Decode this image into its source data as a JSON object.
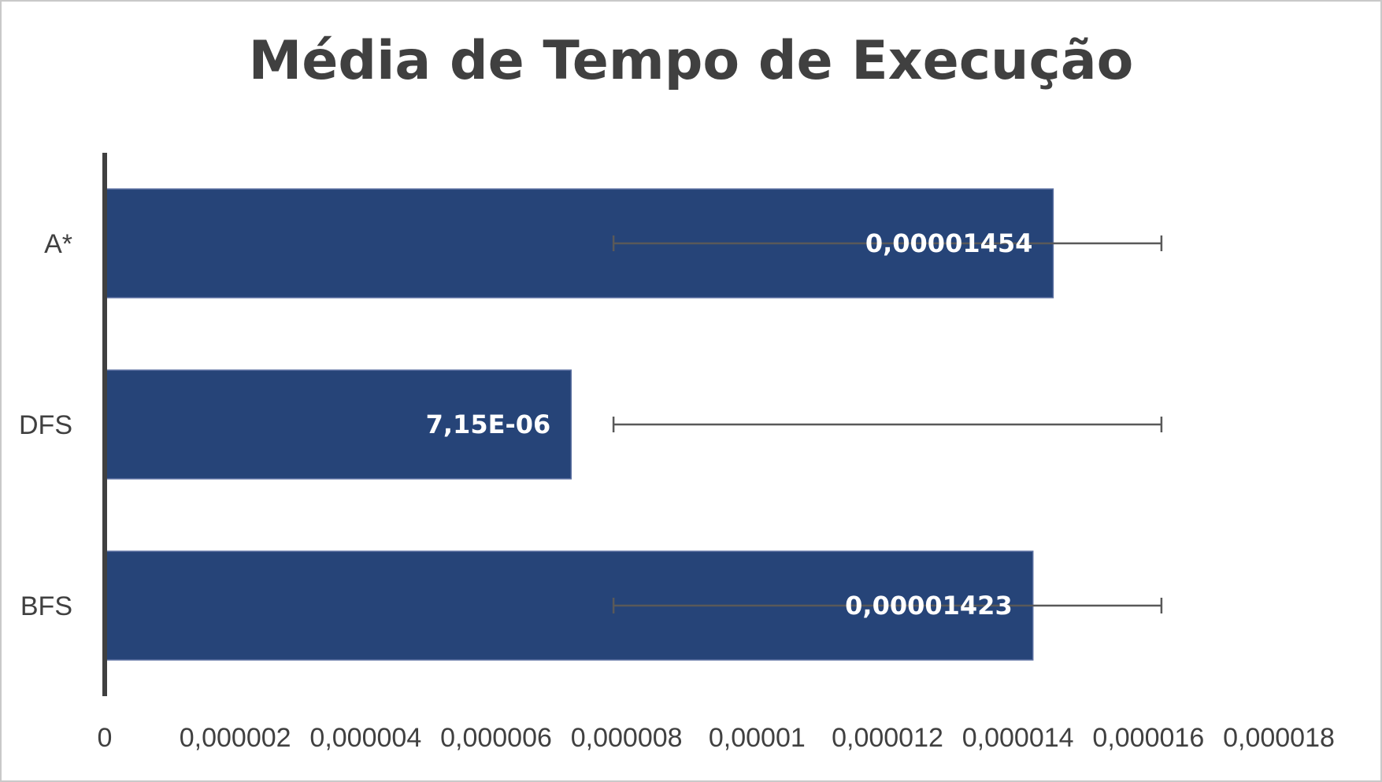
{
  "chart_data": {
    "type": "bar",
    "orientation": "horizontal",
    "title": "Média de Tempo de Execução",
    "categories": [
      "A*",
      "DFS",
      "BFS"
    ],
    "series": [
      {
        "values": [
          1.454e-05,
          7.15e-06,
          1.423e-05
        ],
        "data_labels": [
          "0,00001454",
          "7,15E-06",
          "0,00001423"
        ],
        "error_bar_range": [
          7.8e-06,
          1.62e-05
        ]
      }
    ],
    "xlim": [
      0,
      1.8e-05
    ],
    "x_ticks": [
      0,
      2e-06,
      4e-06,
      6e-06,
      8e-06,
      1e-05,
      1.2e-05,
      1.4e-05,
      1.6e-05,
      1.8e-05
    ],
    "x_tick_labels": [
      "0",
      "0,000002",
      "0,000004",
      "0,000006",
      "0,000008",
      "0,00001",
      "0,000012",
      "0,000014",
      "0,000016",
      "0,000018"
    ],
    "xlabel": "",
    "ylabel": "",
    "grid": "vertical",
    "legend": "none",
    "colors": {
      "bar": "#264478",
      "bar_border": "#5a6fa0",
      "error_bar": "#595959",
      "grid": "#a6a6a6",
      "axis": "#404040",
      "text": "#404040",
      "data_label": "#ffffff"
    }
  }
}
